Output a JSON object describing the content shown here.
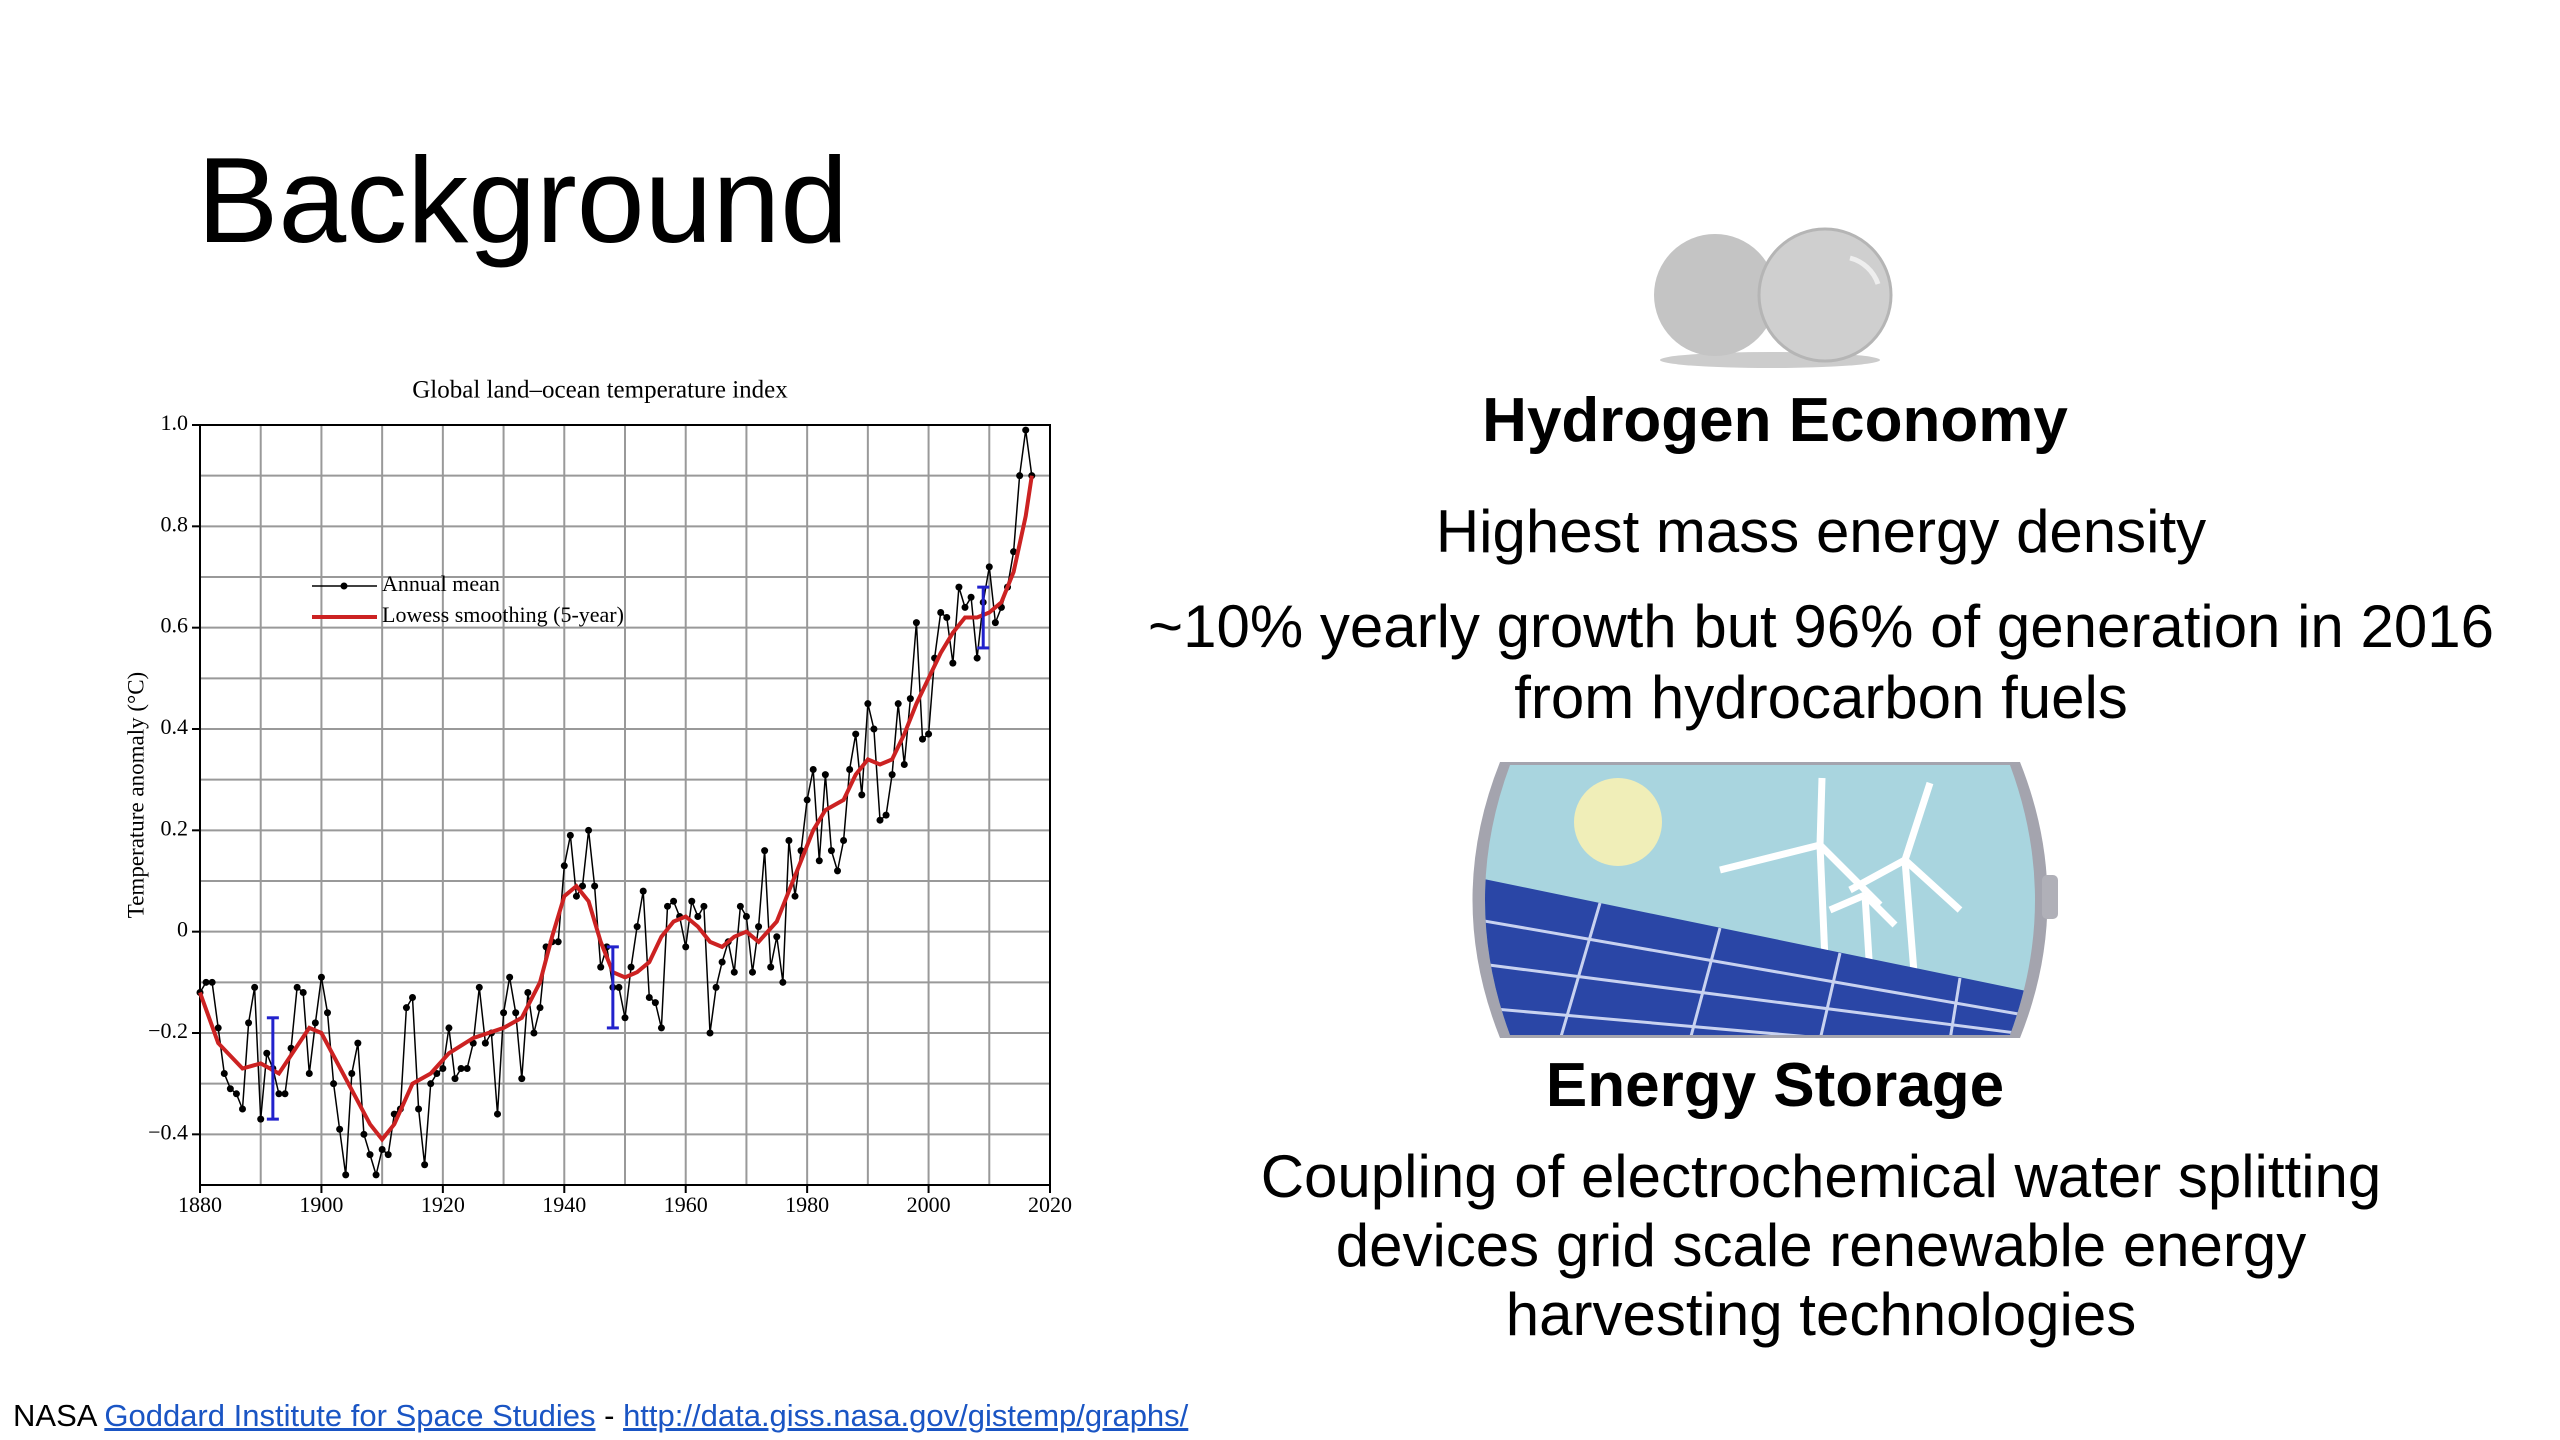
{
  "title": "Background",
  "hydrogen": {
    "heading": "Hydrogen Economy",
    "lines": [
      "Highest mass energy density",
      "~10% yearly growth but 96% of generation in 2016",
      "from hydrocarbon fuels"
    ]
  },
  "storage": {
    "heading": "Energy Storage",
    "lines": [
      "Coupling of electrochemical water splitting",
      "devices grid scale renewable energy",
      "harvesting technologies"
    ]
  },
  "footer": {
    "source": "NASA",
    "link1": "Goddard Institute for Space Studies",
    "separator": "-",
    "link2": "http://data.giss.nasa.gov/gistemp/graphs/"
  },
  "chart_data": {
    "type": "line",
    "title": "Global land–ocean temperature index",
    "ylabel": "Temperature anomaly (°C)",
    "xlim": [
      1880,
      2020
    ],
    "ylim": [
      -0.5,
      1.0
    ],
    "xticks": [
      1880,
      1900,
      1920,
      1940,
      1960,
      1980,
      2000,
      2020
    ],
    "yticks": [
      {
        "value": -0.4,
        "label": "−0.4"
      },
      {
        "value": -0.2,
        "label": "−0.2"
      },
      0,
      0.2,
      0.4,
      0.6,
      0.8,
      {
        "value": 1,
        "label": "1.0"
      }
    ],
    "xminor": [
      1890,
      1910,
      1930,
      1950,
      1970,
      1990,
      2010
    ],
    "yminor": [
      -0.5,
      -0.3,
      -0.1,
      0.1,
      0.3,
      0.5,
      0.7,
      0.9
    ],
    "grid": true,
    "series": [
      {
        "name": "Annual mean",
        "color": "#000000",
        "marker": true,
        "x": [
          1880,
          1881,
          1882,
          1883,
          1884,
          1885,
          1886,
          1887,
          1888,
          1889,
          1890,
          1891,
          1892,
          1893,
          1894,
          1895,
          1896,
          1897,
          1898,
          1899,
          1900,
          1901,
          1902,
          1903,
          1904,
          1905,
          1906,
          1907,
          1908,
          1909,
          1910,
          1911,
          1912,
          1913,
          1914,
          1915,
          1916,
          1917,
          1918,
          1919,
          1920,
          1921,
          1922,
          1923,
          1924,
          1925,
          1926,
          1927,
          1928,
          1929,
          1930,
          1931,
          1932,
          1933,
          1934,
          1935,
          1936,
          1937,
          1938,
          1939,
          1940,
          1941,
          1942,
          1943,
          1944,
          1945,
          1946,
          1947,
          1948,
          1949,
          1950,
          1951,
          1952,
          1953,
          1954,
          1955,
          1956,
          1957,
          1958,
          1959,
          1960,
          1961,
          1962,
          1963,
          1964,
          1965,
          1966,
          1967,
          1968,
          1969,
          1970,
          1971,
          1972,
          1973,
          1974,
          1975,
          1976,
          1977,
          1978,
          1979,
          1980,
          1981,
          1982,
          1983,
          1984,
          1985,
          1986,
          1987,
          1988,
          1989,
          1990,
          1991,
          1992,
          1993,
          1994,
          1995,
          1996,
          1997,
          1998,
          1999,
          2000,
          2001,
          2002,
          2003,
          2004,
          2005,
          2006,
          2007,
          2008,
          2009,
          2010,
          2011,
          2012,
          2013,
          2014,
          2015,
          2016,
          2017
        ],
        "values": [
          -0.12,
          -0.1,
          -0.1,
          -0.19,
          -0.28,
          -0.31,
          -0.32,
          -0.35,
          -0.18,
          -0.11,
          -0.37,
          -0.24,
          -0.27,
          -0.32,
          -0.32,
          -0.23,
          -0.11,
          -0.12,
          -0.28,
          -0.18,
          -0.09,
          -0.16,
          -0.3,
          -0.39,
          -0.48,
          -0.28,
          -0.22,
          -0.4,
          -0.44,
          -0.48,
          -0.43,
          -0.44,
          -0.36,
          -0.35,
          -0.15,
          -0.13,
          -0.35,
          -0.46,
          -0.3,
          -0.28,
          -0.27,
          -0.19,
          -0.29,
          -0.27,
          -0.27,
          -0.22,
          -0.11,
          -0.22,
          -0.2,
          -0.36,
          -0.16,
          -0.09,
          -0.16,
          -0.29,
          -0.12,
          -0.2,
          -0.15,
          -0.03,
          -0.02,
          -0.02,
          0.13,
          0.19,
          0.07,
          0.09,
          0.2,
          0.09,
          -0.07,
          -0.03,
          -0.11,
          -0.11,
          -0.17,
          -0.07,
          0.01,
          0.08,
          -0.13,
          -0.14,
          -0.19,
          0.05,
          0.06,
          0.03,
          -0.03,
          0.06,
          0.03,
          0.05,
          -0.2,
          -0.11,
          -0.06,
          -0.02,
          -0.08,
          0.05,
          0.03,
          -0.08,
          0.01,
          0.16,
          -0.07,
          -0.01,
          -0.1,
          0.18,
          0.07,
          0.16,
          0.26,
          0.32,
          0.14,
          0.31,
          0.16,
          0.12,
          0.18,
          0.32,
          0.39,
          0.27,
          0.45,
          0.4,
          0.22,
          0.23,
          0.31,
          0.45,
          0.33,
          0.46,
          0.61,
          0.38,
          0.39,
          0.54,
          0.63,
          0.62,
          0.53,
          0.68,
          0.64,
          0.66,
          0.54,
          0.65,
          0.72,
          0.61,
          0.64,
          0.68,
          0.75,
          0.9,
          0.99,
          0.9
        ]
      },
      {
        "name": "Lowess smoothing (5-year)",
        "color": "#cc2222",
        "x": [
          1880,
          1883,
          1887,
          1890,
          1893,
          1898,
          1900,
          1904,
          1908,
          1910,
          1912,
          1915,
          1918,
          1921,
          1925,
          1930,
          1933,
          1936,
          1938,
          1940,
          1942,
          1944,
          1946,
          1948,
          1950,
          1952,
          1954,
          1956,
          1958,
          1960,
          1962,
          1964,
          1966,
          1968,
          1970,
          1972,
          1975,
          1977,
          1979,
          1981,
          1983,
          1986,
          1988,
          1990,
          1992,
          1994,
          1996,
          1998,
          2000,
          2002,
          2004,
          2006,
          2008,
          2010,
          2012,
          2014,
          2016,
          2017
        ],
        "values": [
          -0.12,
          -0.22,
          -0.27,
          -0.26,
          -0.28,
          -0.19,
          -0.2,
          -0.29,
          -0.38,
          -0.41,
          -0.38,
          -0.3,
          -0.28,
          -0.24,
          -0.21,
          -0.19,
          -0.17,
          -0.1,
          -0.01,
          0.07,
          0.09,
          0.06,
          -0.02,
          -0.08,
          -0.09,
          -0.08,
          -0.06,
          -0.01,
          0.02,
          0.03,
          0.01,
          -0.02,
          -0.03,
          -0.01,
          0,
          -0.02,
          0.02,
          0.08,
          0.14,
          0.2,
          0.24,
          0.26,
          0.31,
          0.34,
          0.33,
          0.34,
          0.39,
          0.45,
          0.5,
          0.55,
          0.59,
          0.62,
          0.62,
          0.63,
          0.65,
          0.71,
          0.82,
          0.9
        ]
      }
    ],
    "error_bars": {
      "color": "#2222cc",
      "x": [
        1892,
        1948,
        2009
      ],
      "values": [
        -0.27,
        -0.11,
        0.62
      ],
      "errors": [
        0.1,
        0.08,
        0.06
      ]
    }
  }
}
